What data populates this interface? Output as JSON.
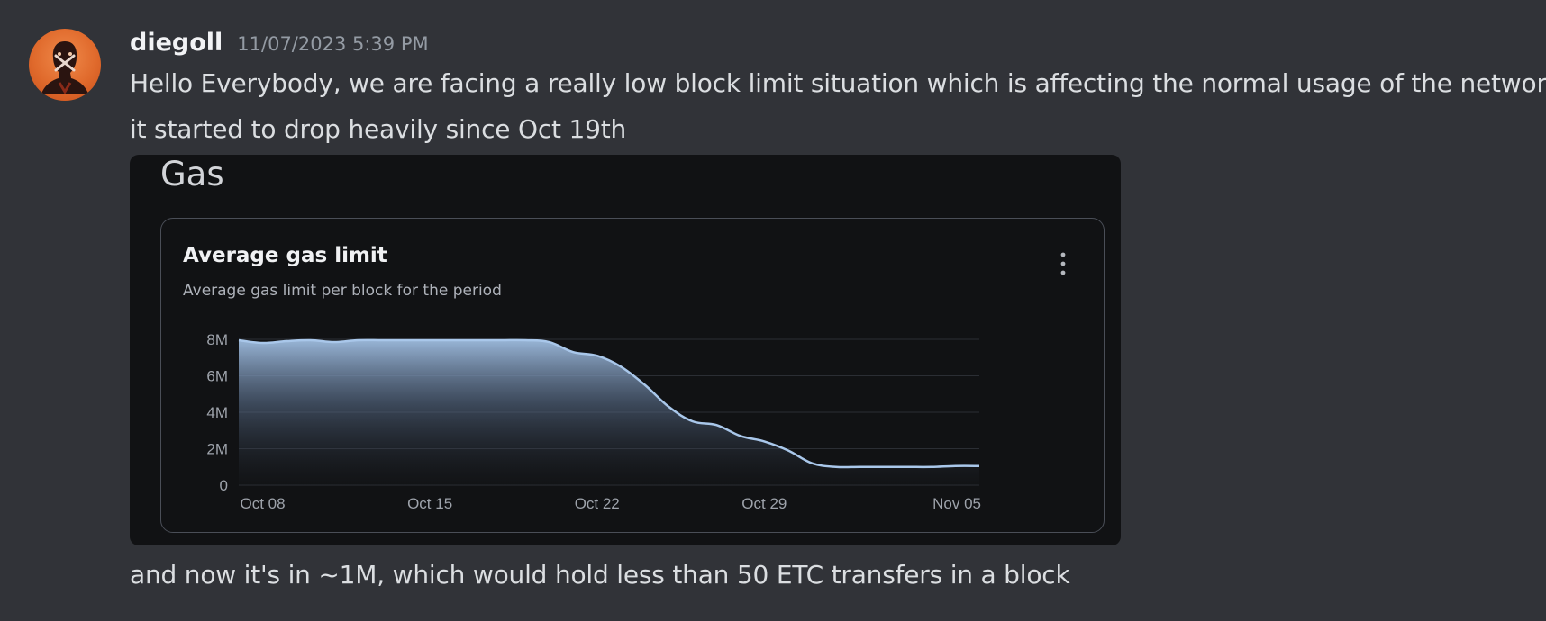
{
  "message": {
    "author": "diegoll",
    "timestamp": "11/07/2023 5:39 PM",
    "lines": [
      "Hello Everybody, we are facing a really low block limit situation which is affecting the normal usage of the network",
      "it started to drop heavily since Oct 19th",
      "and now it's in ~1M, which would hold less than 50 ETC transfers in a block"
    ]
  },
  "embed": {
    "section_title": "Gas",
    "card_title": "Average gas limit",
    "card_subtitle": "Average gas limit per block for the period",
    "menu_icon": "more-vertical-icon"
  },
  "colors": {
    "background": "#313338",
    "embed_background": "#111214",
    "line": "#a9c7ea",
    "avatar": "#e06a2c"
  },
  "chart_data": {
    "type": "area",
    "title": "Average gas limit",
    "subtitle": "Average gas limit per block for the period",
    "xlabel": "",
    "ylabel": "",
    "ylim": [
      0,
      8000000
    ],
    "y_ticks": [
      {
        "value": 0,
        "label": "0"
      },
      {
        "value": 2000000,
        "label": "2M"
      },
      {
        "value": 4000000,
        "label": "4M"
      },
      {
        "value": 6000000,
        "label": "6M"
      },
      {
        "value": 8000000,
        "label": "8M"
      }
    ],
    "x_range": [
      "2023-10-07",
      "2023-11-07"
    ],
    "x_ticks": [
      {
        "date": "2023-10-08",
        "label": "Oct 08"
      },
      {
        "date": "2023-10-15",
        "label": "Oct 15"
      },
      {
        "date": "2023-10-22",
        "label": "Oct 22"
      },
      {
        "date": "2023-10-29",
        "label": "Oct 29"
      },
      {
        "date": "2023-11-05",
        "label": "Nov 05"
      }
    ],
    "grid": true,
    "series": [
      {
        "points": [
          {
            "date": "2023-10-07",
            "value": 7950000
          },
          {
            "date": "2023-10-08",
            "value": 7800000
          },
          {
            "date": "2023-10-09",
            "value": 7900000
          },
          {
            "date": "2023-10-10",
            "value": 7950000
          },
          {
            "date": "2023-10-11",
            "value": 7850000
          },
          {
            "date": "2023-10-12",
            "value": 7950000
          },
          {
            "date": "2023-10-13",
            "value": 7950000
          },
          {
            "date": "2023-10-14",
            "value": 7950000
          },
          {
            "date": "2023-10-15",
            "value": 7950000
          },
          {
            "date": "2023-10-16",
            "value": 7950000
          },
          {
            "date": "2023-10-17",
            "value": 7950000
          },
          {
            "date": "2023-10-18",
            "value": 7950000
          },
          {
            "date": "2023-10-19",
            "value": 7950000
          },
          {
            "date": "2023-10-20",
            "value": 7850000
          },
          {
            "date": "2023-10-21",
            "value": 7300000
          },
          {
            "date": "2023-10-22",
            "value": 7100000
          },
          {
            "date": "2023-10-23",
            "value": 6500000
          },
          {
            "date": "2023-10-24",
            "value": 5500000
          },
          {
            "date": "2023-10-25",
            "value": 4300000
          },
          {
            "date": "2023-10-26",
            "value": 3500000
          },
          {
            "date": "2023-10-27",
            "value": 3300000
          },
          {
            "date": "2023-10-28",
            "value": 2700000
          },
          {
            "date": "2023-10-29",
            "value": 2400000
          },
          {
            "date": "2023-10-30",
            "value": 1900000
          },
          {
            "date": "2023-10-31",
            "value": 1200000
          },
          {
            "date": "2023-11-01",
            "value": 1000000
          },
          {
            "date": "2023-11-02",
            "value": 1000000
          },
          {
            "date": "2023-11-03",
            "value": 1000000
          },
          {
            "date": "2023-11-04",
            "value": 1000000
          },
          {
            "date": "2023-11-05",
            "value": 1000000
          },
          {
            "date": "2023-11-06",
            "value": 1050000
          },
          {
            "date": "2023-11-07",
            "value": 1050000
          }
        ]
      }
    ]
  }
}
